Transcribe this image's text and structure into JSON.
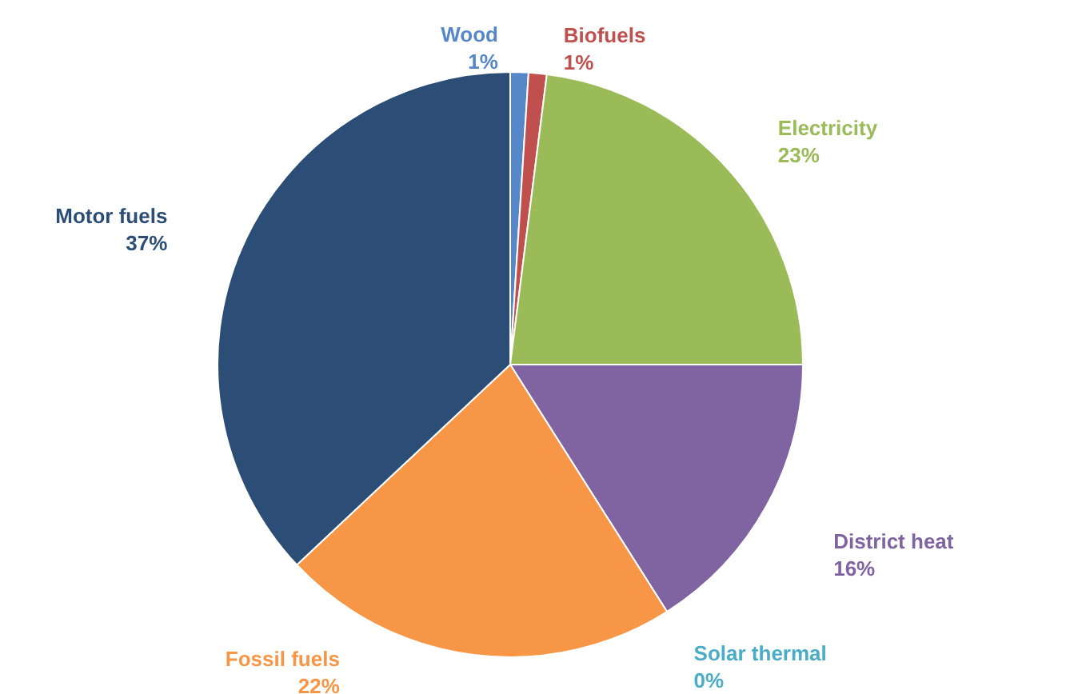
{
  "chart_data": {
    "type": "pie",
    "categories": [
      "Wood",
      "Biofuels",
      "Electricity",
      "District heat",
      "Solar thermal",
      "Fossil fuels",
      "Motor fuels"
    ],
    "values": [
      1,
      1,
      23,
      16,
      0,
      22,
      37
    ],
    "value_labels": [
      "1%",
      "1%",
      "23%",
      "16%",
      "0%",
      "22%",
      "37%"
    ],
    "colors": [
      "#5687c8",
      "#c0504d",
      "#9bbb59",
      "#8064a2",
      "#4bacc6",
      "#f79646",
      "#2c4d75"
    ]
  }
}
